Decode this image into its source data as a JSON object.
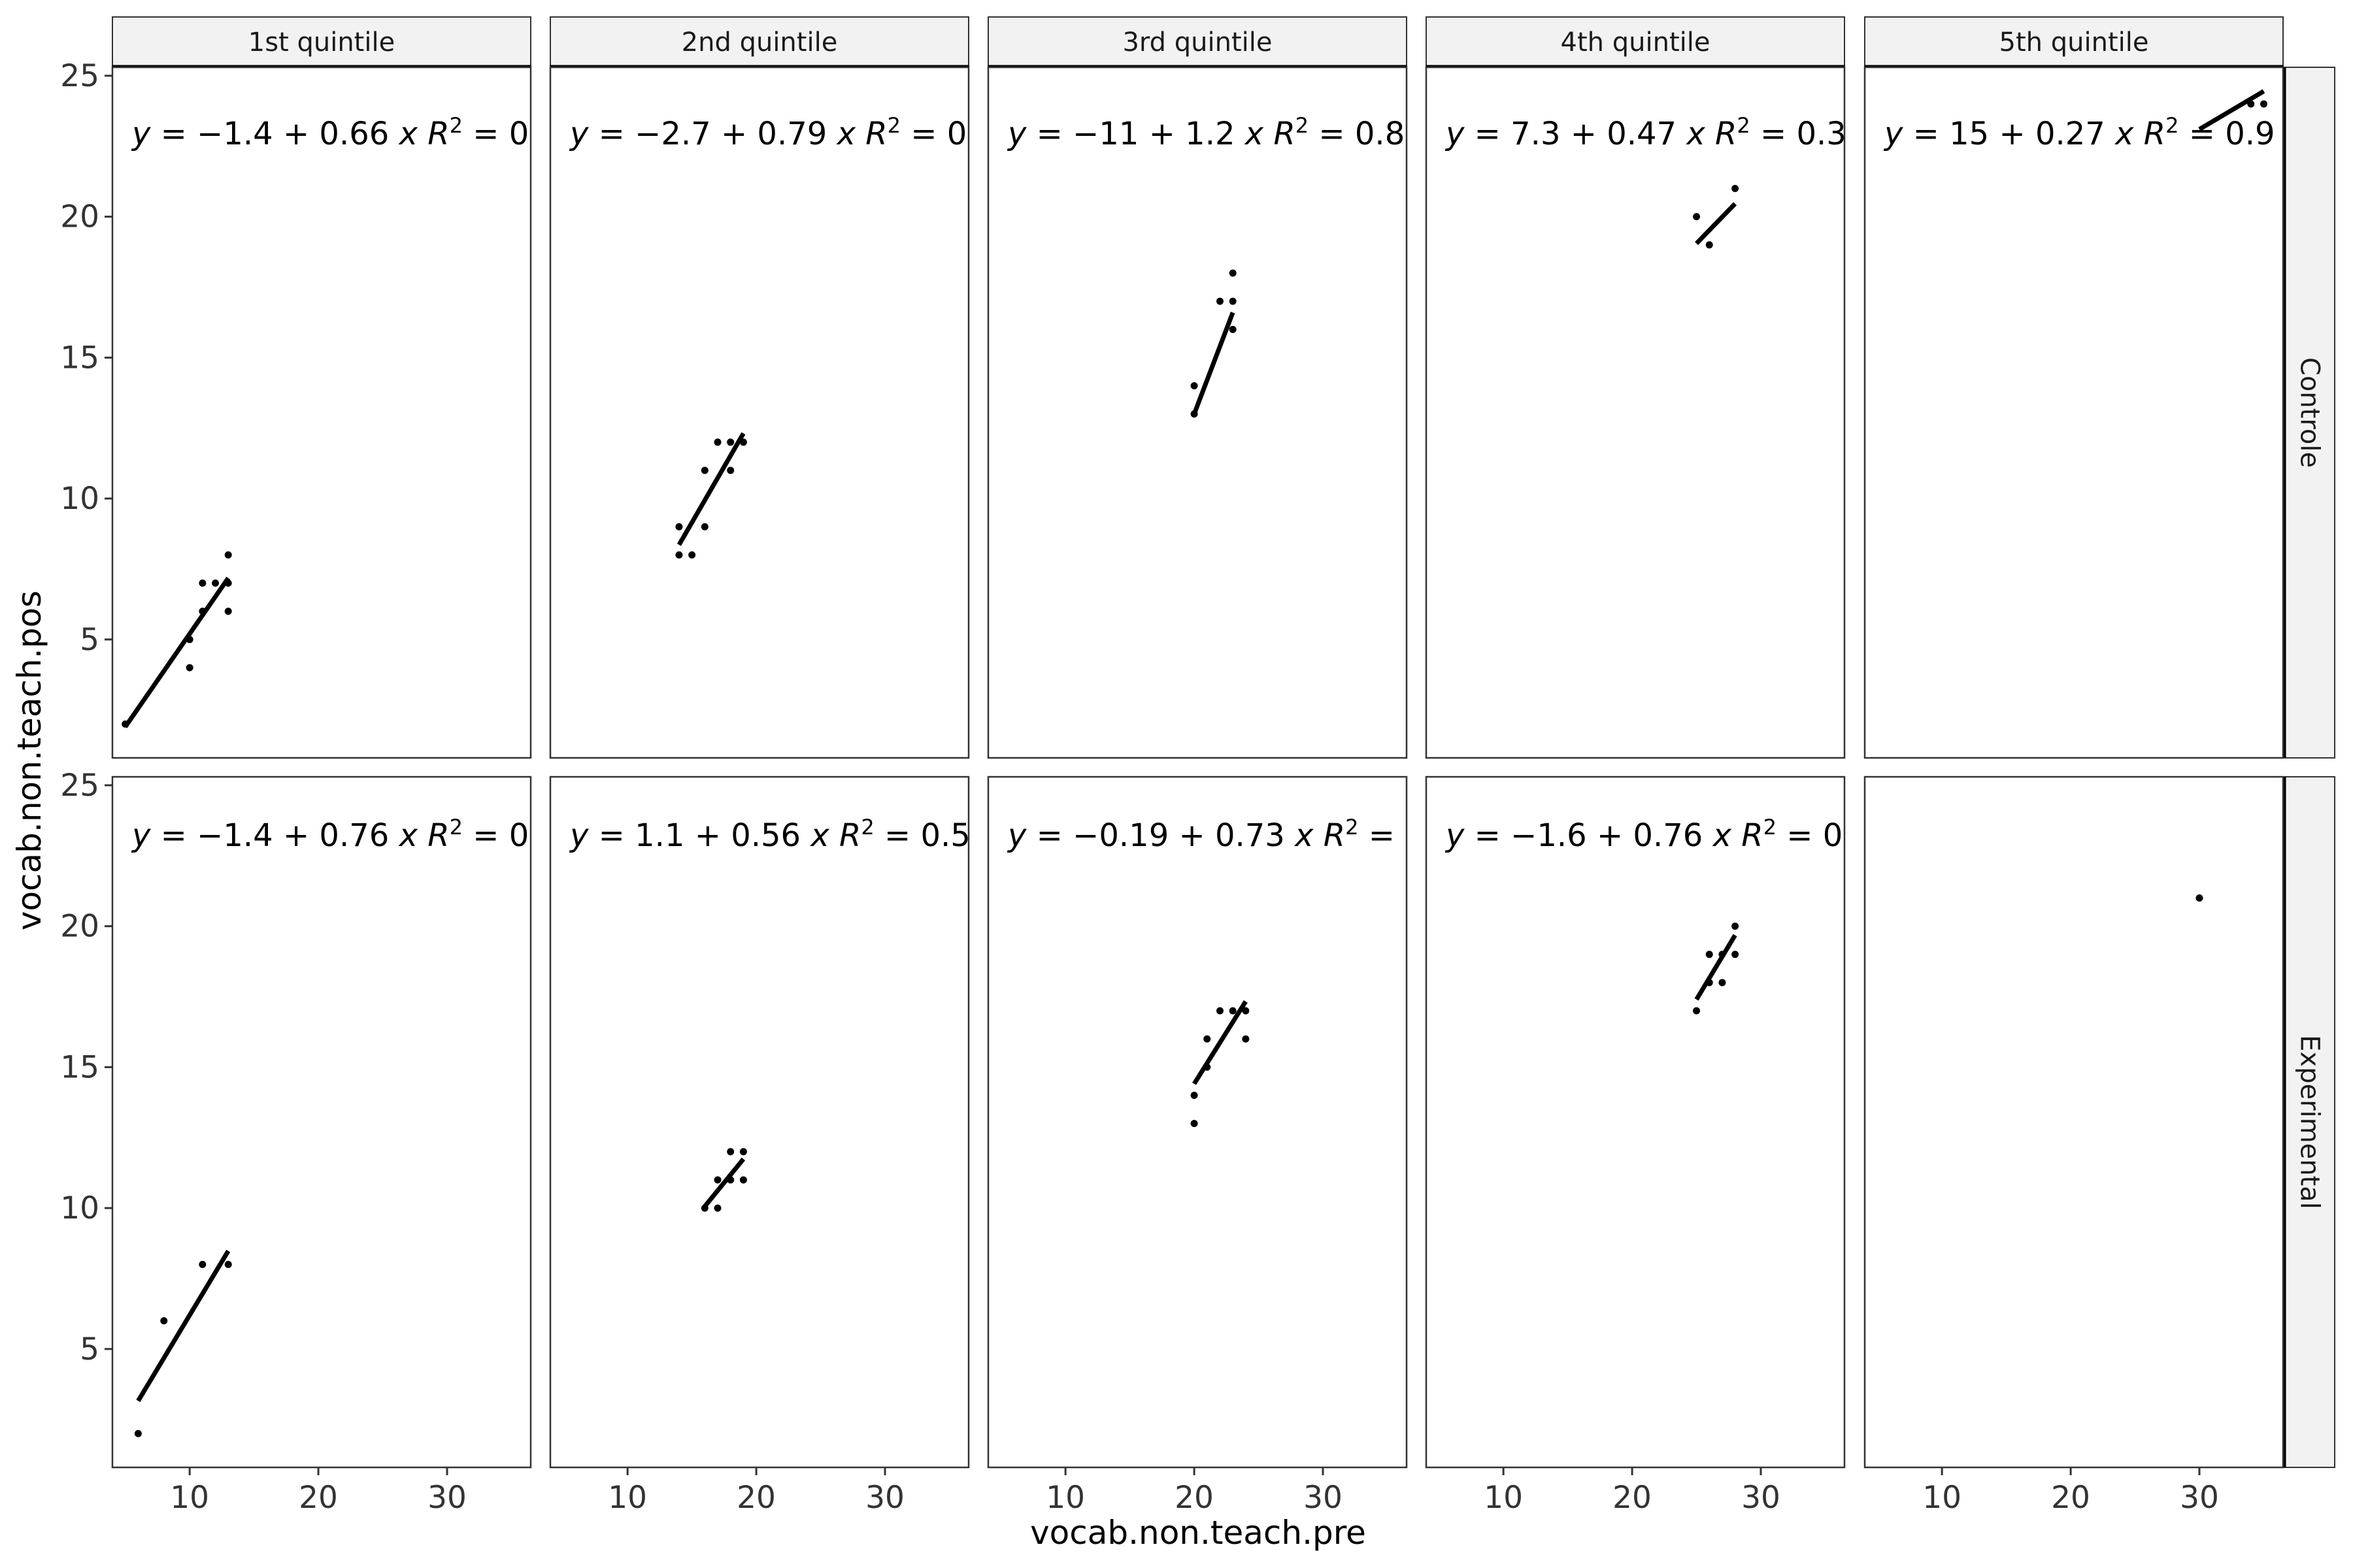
{
  "chart_data": {
    "type": "scatter",
    "title": "",
    "xlabel": "vocab.non.teach.pre",
    "ylabel": "vocab.non.teach.pos",
    "xlim": [
      4,
      36.5
    ],
    "ylim": [
      0.8,
      25.3
    ],
    "xticks": [
      10,
      20,
      30
    ],
    "yticks": [
      5,
      10,
      15,
      20,
      25
    ],
    "columns": [
      "1st quintile",
      "2nd quintile",
      "3rd quintile",
      "4th quintile",
      "5th quintile"
    ],
    "rows": [
      "Controle",
      "Experimental"
    ],
    "panels": [
      {
        "row": "Controle",
        "col": "1st quintile",
        "equation": {
          "intercept": "−1.4",
          "sign": "+",
          "slope": "0.66",
          "r2_visible": "0"
        },
        "points": [
          [
            5,
            2
          ],
          [
            10,
            4
          ],
          [
            10,
            5
          ],
          [
            11,
            6
          ],
          [
            11,
            7
          ],
          [
            12,
            7
          ],
          [
            13,
            7
          ],
          [
            13,
            8
          ],
          [
            13,
            6
          ]
        ],
        "fit": {
          "x": [
            5,
            13
          ]
        }
      },
      {
        "row": "Controle",
        "col": "2nd quintile",
        "equation": {
          "intercept": "−2.7",
          "sign": "+",
          "slope": "0.79",
          "r2_visible": "0"
        },
        "points": [
          [
            14,
            8
          ],
          [
            14,
            9
          ],
          [
            15,
            8
          ],
          [
            16,
            9
          ],
          [
            16,
            11
          ],
          [
            17,
            12
          ],
          [
            18,
            12
          ],
          [
            18,
            11
          ],
          [
            19,
            12
          ]
        ],
        "fit": {
          "x": [
            14,
            19
          ]
        }
      },
      {
        "row": "Controle",
        "col": "3rd quintile",
        "equation": {
          "intercept": "−11",
          "sign": "+",
          "slope": "1.2",
          "r2_visible": "0.8"
        },
        "points": [
          [
            20,
            13
          ],
          [
            20,
            14
          ],
          [
            22,
            17
          ],
          [
            23,
            18
          ],
          [
            23,
            17
          ],
          [
            23,
            16
          ]
        ],
        "fit": {
          "x": [
            20,
            23
          ]
        }
      },
      {
        "row": "Controle",
        "col": "4th quintile",
        "equation": {
          "intercept": "7.3",
          "sign": "+",
          "slope": "0.47",
          "r2_visible": "0.3"
        },
        "points": [
          [
            25,
            20
          ],
          [
            26,
            19
          ],
          [
            28,
            21
          ]
        ],
        "fit": {
          "x": [
            25,
            28
          ]
        }
      },
      {
        "row": "Controle",
        "col": "5th quintile",
        "equation": {
          "intercept": "15",
          "sign": "+",
          "slope": "0.27",
          "r2_visible": "0.9"
        },
        "points": [
          [
            34,
            24
          ],
          [
            35,
            24
          ]
        ],
        "fit": {
          "x": [
            30,
            35
          ]
        }
      },
      {
        "row": "Experimental",
        "col": "1st quintile",
        "equation": {
          "intercept": "−1.4",
          "sign": "+",
          "slope": "0.76",
          "r2_visible": "0"
        },
        "points": [
          [
            6,
            2
          ],
          [
            8,
            6
          ],
          [
            11,
            8
          ],
          [
            13,
            8
          ]
        ],
        "fit": {
          "x": [
            6,
            13
          ]
        }
      },
      {
        "row": "Experimental",
        "col": "2nd quintile",
        "equation": {
          "intercept": "1.1",
          "sign": "+",
          "slope": "0.56",
          "r2_visible": "0.5"
        },
        "points": [
          [
            16,
            10
          ],
          [
            17,
            10
          ],
          [
            17,
            11
          ],
          [
            18,
            12
          ],
          [
            18,
            11
          ],
          [
            19,
            12
          ],
          [
            19,
            11
          ]
        ],
        "fit": {
          "x": [
            16,
            19
          ]
        }
      },
      {
        "row": "Experimental",
        "col": "3rd quintile",
        "equation": {
          "intercept": "−0.19",
          "sign": "+",
          "slope": "0.73",
          "r2_visible": ""
        },
        "points": [
          [
            20,
            13
          ],
          [
            20,
            14
          ],
          [
            21,
            15
          ],
          [
            21,
            16
          ],
          [
            22,
            17
          ],
          [
            23,
            17
          ],
          [
            24,
            17
          ],
          [
            24,
            16
          ]
        ],
        "fit": {
          "x": [
            20,
            24
          ]
        }
      },
      {
        "row": "Experimental",
        "col": "4th quintile",
        "equation": {
          "intercept": "−1.6",
          "sign": "+",
          "slope": "0.76",
          "r2_visible": "0"
        },
        "points": [
          [
            25,
            17
          ],
          [
            26,
            18
          ],
          [
            26,
            19
          ],
          [
            27,
            18
          ],
          [
            27,
            19
          ],
          [
            28,
            20
          ],
          [
            28,
            19
          ]
        ],
        "fit": {
          "x": [
            25,
            28
          ]
        }
      },
      {
        "row": "Experimental",
        "col": "5th quintile",
        "equation": null,
        "points": [
          [
            30,
            21
          ]
        ],
        "fit": null
      }
    ]
  }
}
